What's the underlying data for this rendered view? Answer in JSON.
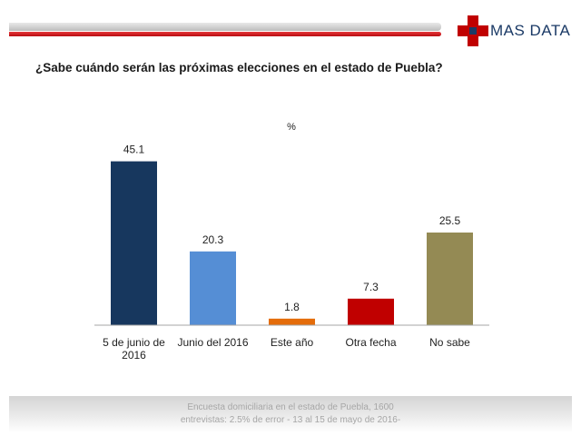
{
  "header": {
    "logo_text": "MAS DATA"
  },
  "question": "¿Sabe cuándo serán las próximas elecciones en el estado de Puebla?",
  "unit_label": "%",
  "colors": {
    "red": "#c00000",
    "navy": "#1b3a66"
  },
  "chart_data": {
    "type": "bar",
    "categories": [
      "5 de junio de 2016",
      "Junio del 2016",
      "Este año",
      "Otra fecha",
      "No sabe"
    ],
    "category_lines": [
      [
        "5 de junio de",
        "2016"
      ],
      [
        "Junio del 2016"
      ],
      [
        "Este año"
      ],
      [
        "Otra fecha"
      ],
      [
        "No sabe"
      ]
    ],
    "values": [
      45.1,
      20.3,
      1.8,
      7.3,
      25.5
    ],
    "colors": [
      "#17375e",
      "#558ed5",
      "#e46c0a",
      "#c00000",
      "#948a54"
    ],
    "ylim": [
      0,
      50
    ],
    "grid": false,
    "legend": "none"
  },
  "footer": {
    "line1": "Encuesta domiciliaria en el estado de Puebla, 1600",
    "line2": "entrevistas: 2.5% de error - 13 al 15 de mayo de 2016-"
  }
}
